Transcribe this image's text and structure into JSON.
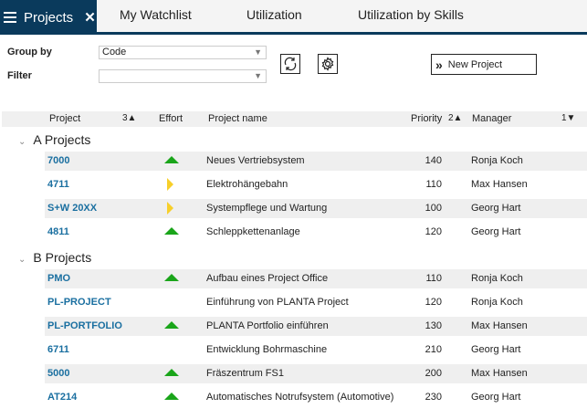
{
  "tabs": [
    {
      "label": "Projects",
      "active": true
    },
    {
      "label": "My Watchlist"
    },
    {
      "label": "Utilization"
    },
    {
      "label": "Utilization by Skills"
    }
  ],
  "filters": {
    "group_by_label": "Group by",
    "group_by_value": "Code",
    "filter_label": "Filter",
    "filter_value": ""
  },
  "toolbar": {
    "new_project_label": "New Project",
    "refresh_icon": "refresh-icon",
    "settings_icon": "gear-icon"
  },
  "columns": {
    "project": "Project",
    "project_sort": "3▲",
    "effort": "Effort",
    "name": "Project name",
    "priority": "Priority",
    "priority_sort": "2▲",
    "manager": "Manager",
    "manager_sort": "1▼"
  },
  "groups": [
    {
      "label": "A Projects",
      "rows": [
        {
          "code": "7000",
          "effort": "up",
          "name": "Neues Vertriebsystem",
          "priority": "140",
          "manager": "Ronja Koch"
        },
        {
          "code": "4711",
          "effort": "right",
          "name": "Elektrohängebahn",
          "priority": "110",
          "manager": "Max Hansen"
        },
        {
          "code": "S+W 20XX",
          "effort": "right",
          "name": "Systempflege und Wartung",
          "priority": "100",
          "manager": "Georg Hart"
        },
        {
          "code": "4811",
          "effort": "up",
          "name": "Schleppkettenanlage",
          "priority": "120",
          "manager": "Georg Hart"
        }
      ]
    },
    {
      "label": "B Projects",
      "rows": [
        {
          "code": "PMO",
          "effort": "up",
          "name": "Aufbau eines Project Office",
          "priority": "110",
          "manager": "Ronja Koch"
        },
        {
          "code": "PL-PROJECT",
          "effort": "",
          "name": "Einführung von PLANTA Project",
          "priority": "120",
          "manager": "Ronja Koch"
        },
        {
          "code": "PL-PORTFOLIO",
          "effort": "up",
          "name": "PLANTA Portfolio einführen",
          "priority": "130",
          "manager": "Max Hansen"
        },
        {
          "code": "6711",
          "effort": "",
          "name": "Entwicklung Bohrmaschine",
          "priority": "210",
          "manager": "Georg Hart"
        },
        {
          "code": "5000",
          "effort": "up",
          "name": "Fräszentrum FS1",
          "priority": "200",
          "manager": "Max Hansen"
        },
        {
          "code": "AT214",
          "effort": "up",
          "name": "Automatisches Notrufsystem (Automotive)",
          "priority": "230",
          "manager": "Georg Hart"
        }
      ]
    }
  ],
  "colors": {
    "brand": "#0a3a5c",
    "link": "#1a6fa0",
    "effort_up": "#1aa51a",
    "effort_flat": "#f7cf2a"
  }
}
